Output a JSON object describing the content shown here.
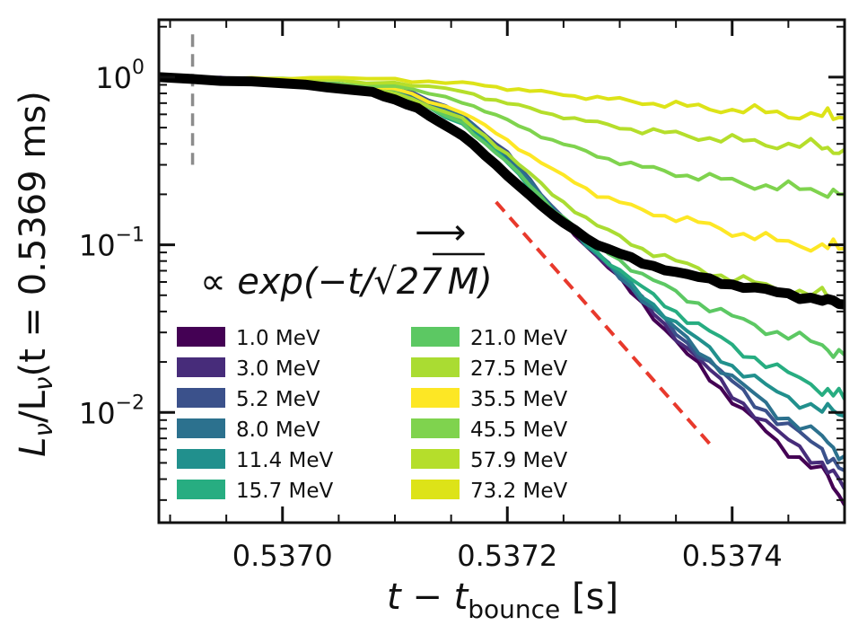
{
  "chart_data": {
    "type": "line",
    "xlabel": "t − t",
    "xlabel_sub": "bounce",
    "xlabel_unit": " [s]",
    "ylabel": "L",
    "ylabel_mid": "/L",
    "ylabel_tail": "(t = 0.5369 ms)",
    "ylabel_sub": "ν",
    "y_scale": "log",
    "xlim": [
      0.53689,
      0.5375
    ],
    "ylim": [
      0.0022,
      2.2
    ],
    "x_ticks": [
      {
        "value": 0.537,
        "label": "0.5370"
      },
      {
        "value": 0.5372,
        "label": "0.5372"
      },
      {
        "value": 0.5374,
        "label": "0.5374"
      }
    ],
    "y_ticks": [
      {
        "value": 1,
        "base": "10",
        "exp": "0"
      },
      {
        "value": 0.1,
        "base": "10",
        "exp": "−1"
      },
      {
        "value": 0.01,
        "base": "10",
        "exp": "−2"
      }
    ],
    "reference_line": {
      "x": 0.53692,
      "y_range": [
        0.3,
        1.8
      ],
      "color": "#8c8c8c",
      "style": "dashed"
    },
    "fit_line": {
      "x": [
        0.53719,
        0.53738
      ],
      "y": [
        0.18,
        0.0065
      ],
      "color": "#e8392c",
      "style": "dashed"
    },
    "annotation": {
      "prefix": "∝ ",
      "text": "exp(−t/",
      "radical": "√",
      "radicand": "27",
      "suffix": "M)",
      "arrow": "⟶",
      "x": 0.53705,
      "y": 0.04
    },
    "legend": {
      "placement": "lower-left",
      "columns": 2
    },
    "series": [
      {
        "name": "1.0 MeV",
        "color": "#440154",
        "x": [
          0.53689,
          0.537,
          0.5371,
          0.53716,
          0.5372,
          0.53724,
          0.53728,
          0.53732,
          0.53736,
          0.5374,
          0.53744,
          0.53748,
          0.5375
        ],
        "y": [
          1.0,
          0.93,
          0.82,
          0.55,
          0.32,
          0.16,
          0.085,
          0.045,
          0.022,
          0.012,
          0.0065,
          0.0045,
          0.0028
        ]
      },
      {
        "name": "3.0 MeV",
        "color": "#472c7a",
        "x": [
          0.53689,
          0.537,
          0.5371,
          0.53716,
          0.5372,
          0.53724,
          0.53728,
          0.53732,
          0.53736,
          0.5374,
          0.53744,
          0.53748,
          0.5375
        ],
        "y": [
          1.0,
          0.94,
          0.84,
          0.56,
          0.33,
          0.165,
          0.088,
          0.047,
          0.024,
          0.013,
          0.0075,
          0.005,
          0.0035
        ]
      },
      {
        "name": "5.2 MeV",
        "color": "#3b518b",
        "x": [
          0.53689,
          0.537,
          0.5371,
          0.53716,
          0.5372,
          0.53724,
          0.53728,
          0.53732,
          0.53736,
          0.5374,
          0.53744,
          0.53748,
          0.5375
        ],
        "y": [
          1.0,
          0.95,
          0.88,
          0.6,
          0.35,
          0.17,
          0.09,
          0.048,
          0.026,
          0.015,
          0.009,
          0.006,
          0.0045
        ]
      },
      {
        "name": "8.0 MeV",
        "color": "#2c718e",
        "x": [
          0.53689,
          0.537,
          0.5371,
          0.53716,
          0.5372,
          0.53724,
          0.53728,
          0.53732,
          0.53736,
          0.5374,
          0.53744,
          0.53748,
          0.5375
        ],
        "y": [
          1.0,
          0.94,
          0.85,
          0.58,
          0.34,
          0.165,
          0.088,
          0.048,
          0.027,
          0.016,
          0.01,
          0.007,
          0.0055
        ]
      },
      {
        "name": "11.4 MeV",
        "color": "#21908d",
        "x": [
          0.53689,
          0.537,
          0.5371,
          0.53716,
          0.5372,
          0.53724,
          0.53728,
          0.53732,
          0.53736,
          0.5374,
          0.53744,
          0.53748,
          0.5375
        ],
        "y": [
          1.0,
          0.93,
          0.82,
          0.55,
          0.32,
          0.16,
          0.088,
          0.05,
          0.03,
          0.019,
          0.013,
          0.0105,
          0.0095
        ]
      },
      {
        "name": "15.7 MeV",
        "color": "#27ad81",
        "x": [
          0.53689,
          0.537,
          0.5371,
          0.53716,
          0.5372,
          0.53724,
          0.53728,
          0.53732,
          0.53736,
          0.5374,
          0.53744,
          0.53748,
          0.5375
        ],
        "y": [
          1.0,
          0.92,
          0.8,
          0.53,
          0.31,
          0.16,
          0.09,
          0.055,
          0.036,
          0.025,
          0.018,
          0.014,
          0.012
        ]
      },
      {
        "name": "21.0 MeV",
        "color": "#5cc863",
        "x": [
          0.53689,
          0.537,
          0.5371,
          0.53716,
          0.5372,
          0.53724,
          0.53728,
          0.53732,
          0.53736,
          0.5374,
          0.53744,
          0.53748,
          0.5375
        ],
        "y": [
          1.0,
          0.92,
          0.8,
          0.53,
          0.31,
          0.165,
          0.1,
          0.066,
          0.048,
          0.037,
          0.03,
          0.025,
          0.022
        ]
      },
      {
        "name": "27.5 MeV",
        "color": "#aadc32",
        "x": [
          0.53689,
          0.537,
          0.5371,
          0.53716,
          0.5372,
          0.53724,
          0.53728,
          0.53732,
          0.53736,
          0.5374,
          0.53744,
          0.53748,
          0.5375
        ],
        "y": [
          1.0,
          0.92,
          0.82,
          0.56,
          0.35,
          0.2,
          0.13,
          0.095,
          0.075,
          0.063,
          0.055,
          0.05,
          0.045
        ]
      },
      {
        "name": "35.5 MeV",
        "color": "#fde725",
        "x": [
          0.53689,
          0.537,
          0.5371,
          0.53716,
          0.5372,
          0.53724,
          0.53728,
          0.53732,
          0.53736,
          0.5374,
          0.53744,
          0.53748,
          0.5375
        ],
        "y": [
          1.0,
          0.93,
          0.85,
          0.62,
          0.42,
          0.28,
          0.2,
          0.16,
          0.14,
          0.12,
          0.105,
          0.098,
          0.095
        ]
      },
      {
        "name": "45.5 MeV",
        "color": "#7fd34e",
        "x": [
          0.53689,
          0.537,
          0.5371,
          0.53716,
          0.5372,
          0.53724,
          0.53728,
          0.53732,
          0.53736,
          0.5374,
          0.53744,
          0.53748,
          0.5375
        ],
        "y": [
          1.0,
          0.95,
          0.88,
          0.72,
          0.55,
          0.42,
          0.34,
          0.29,
          0.26,
          0.24,
          0.22,
          0.21,
          0.2
        ]
      },
      {
        "name": "57.9 MeV",
        "color": "#b5de2b",
        "x": [
          0.53689,
          0.537,
          0.5371,
          0.53716,
          0.5372,
          0.53724,
          0.53728,
          0.53732,
          0.53736,
          0.5374,
          0.53744,
          0.53748,
          0.5375
        ],
        "y": [
          1.0,
          0.97,
          0.93,
          0.82,
          0.7,
          0.6,
          0.53,
          0.48,
          0.45,
          0.42,
          0.4,
          0.38,
          0.37
        ]
      },
      {
        "name": "73.2 MeV",
        "color": "#dde318",
        "x": [
          0.53689,
          0.537,
          0.5371,
          0.53716,
          0.5372,
          0.53724,
          0.53728,
          0.53732,
          0.53736,
          0.5374,
          0.53744,
          0.53748,
          0.5375
        ],
        "y": [
          1.0,
          0.99,
          0.97,
          0.92,
          0.86,
          0.8,
          0.75,
          0.71,
          0.67,
          0.64,
          0.61,
          0.59,
          0.57
        ]
      }
    ],
    "total": {
      "color": "#000000",
      "x": [
        0.53689,
        0.537,
        0.53708,
        0.53712,
        0.53716,
        0.5372,
        0.53724,
        0.53728,
        0.53732,
        0.53736,
        0.5374,
        0.53744,
        0.53748,
        0.5375
      ],
      "y": [
        1.0,
        0.92,
        0.82,
        0.65,
        0.45,
        0.26,
        0.15,
        0.1,
        0.078,
        0.066,
        0.058,
        0.052,
        0.047,
        0.044
      ]
    }
  }
}
